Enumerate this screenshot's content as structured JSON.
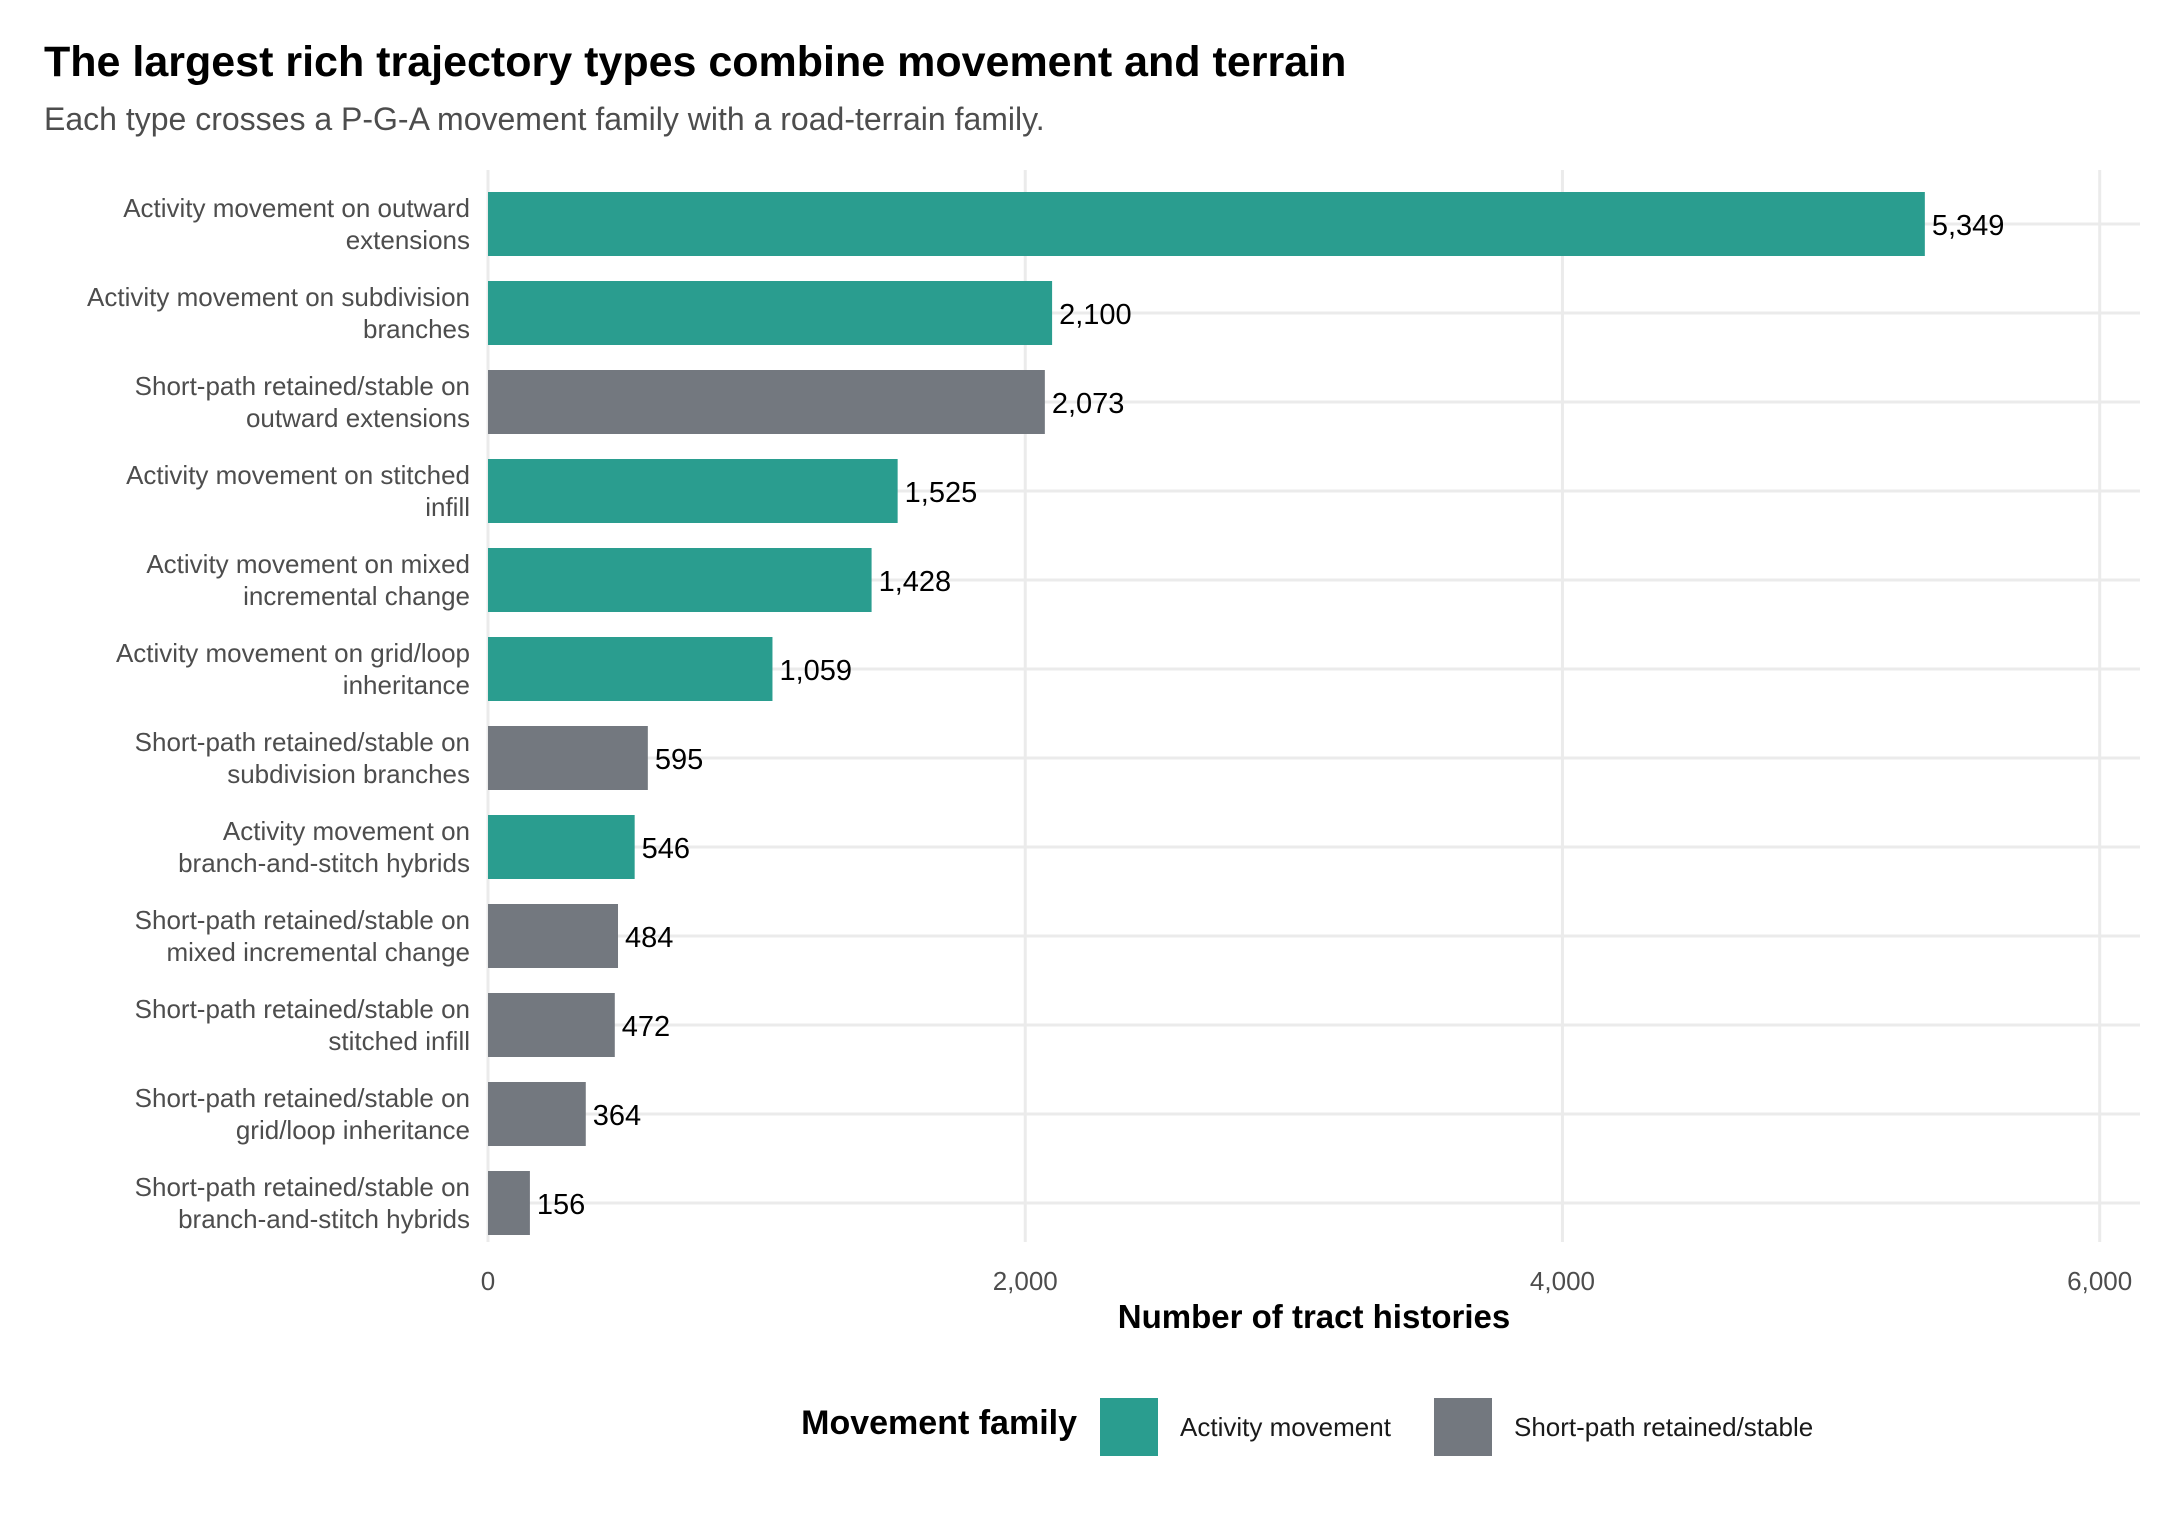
{
  "chart_data": {
    "type": "bar",
    "orientation": "horizontal",
    "title": "The largest rich trajectory types combine movement and terrain",
    "subtitle": "Each type crosses a P-G-A movement family with a road-terrain family.",
    "xlabel": "Number of tract histories",
    "ylabel": "",
    "xlim": [
      0,
      6150
    ],
    "x_ticks": [
      0,
      2000,
      4000,
      6000
    ],
    "x_tick_labels": [
      "0",
      "2,000",
      "4,000",
      "6,000"
    ],
    "grid": true,
    "legend": {
      "title": "Movement family",
      "position": "bottom",
      "entries": [
        {
          "name": "Activity movement",
          "color": "#2a9d8f"
        },
        {
          "name": "Short-path retained/stable",
          "color": "#73787f"
        }
      ]
    },
    "bars": [
      {
        "label_lines": [
          "Activity movement on outward",
          "extensions"
        ],
        "value": 5349,
        "value_label": "5,349",
        "family": "Activity movement"
      },
      {
        "label_lines": [
          "Activity movement on subdivision",
          "branches"
        ],
        "value": 2100,
        "value_label": "2,100",
        "family": "Activity movement"
      },
      {
        "label_lines": [
          "Short-path retained/stable on",
          "outward extensions"
        ],
        "value": 2073,
        "value_label": "2,073",
        "family": "Short-path retained/stable"
      },
      {
        "label_lines": [
          "Activity movement on stitched",
          "infill"
        ],
        "value": 1525,
        "value_label": "1,525",
        "family": "Activity movement"
      },
      {
        "label_lines": [
          "Activity movement on mixed",
          "incremental change"
        ],
        "value": 1428,
        "value_label": "1,428",
        "family": "Activity movement"
      },
      {
        "label_lines": [
          "Activity movement on grid/loop",
          "inheritance"
        ],
        "value": 1059,
        "value_label": "1,059",
        "family": "Activity movement"
      },
      {
        "label_lines": [
          "Short-path retained/stable on",
          "subdivision branches"
        ],
        "value": 595,
        "value_label": "595",
        "family": "Short-path retained/stable"
      },
      {
        "label_lines": [
          "Activity movement on",
          "branch-and-stitch hybrids"
        ],
        "value": 546,
        "value_label": "546",
        "family": "Activity movement"
      },
      {
        "label_lines": [
          "Short-path retained/stable on",
          "mixed incremental change"
        ],
        "value": 484,
        "value_label": "484",
        "family": "Short-path retained/stable"
      },
      {
        "label_lines": [
          "Short-path retained/stable on",
          "stitched infill"
        ],
        "value": 472,
        "value_label": "472",
        "family": "Short-path retained/stable"
      },
      {
        "label_lines": [
          "Short-path retained/stable on",
          "grid/loop inheritance"
        ],
        "value": 364,
        "value_label": "364",
        "family": "Short-path retained/stable"
      },
      {
        "label_lines": [
          "Short-path retained/stable on",
          "branch-and-stitch hybrids"
        ],
        "value": 156,
        "value_label": "156",
        "family": "Short-path retained/stable"
      }
    ]
  }
}
